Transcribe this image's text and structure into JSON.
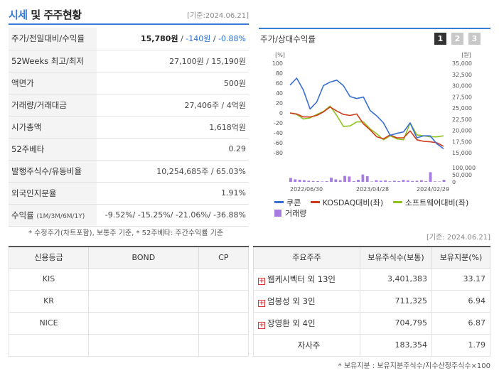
{
  "header": {
    "title_accent": "시세",
    "title_rest": " 및 주주현황",
    "date": "[기준:2024.06.21]"
  },
  "summary": {
    "rows": [
      {
        "label": "주가/전일대비/수익률",
        "price": "15,780원",
        "sep1": " / ",
        "change": "-140원",
        "sep2": " / ",
        "rate": "-0.88%"
      },
      {
        "label": "52Weeks 최고/최저",
        "value": "27,100원 / 15,190원"
      },
      {
        "label": "액면가",
        "value": "500원"
      },
      {
        "label": "거래량/거래대금",
        "value": "27,406주 / 4억원"
      },
      {
        "label": "시가총액",
        "value": "1,618억원"
      },
      {
        "label": "52주베타",
        "value": "0.29"
      },
      {
        "label": "발행주식수/유동비율",
        "value": "10,254,685주 / 65.03%"
      },
      {
        "label": "외국인지분율",
        "value": "1.91%"
      },
      {
        "label": "수익률",
        "label_small": "(1M/3M/6M/1Y)",
        "value": "-9.52%/ -15.25%/ -21.06%/ -36.88%"
      }
    ],
    "note": "* 수정주가(차트포함), 보통주 기준, * 52주베타: 주간수익률 기준"
  },
  "chart_panel": {
    "title": "주가/상대수익률",
    "pages": [
      "1",
      "2",
      "3"
    ],
    "date": "[기준: 2024.06.21]"
  },
  "chart_data": {
    "type": "line",
    "left_axis_unit": "[%]",
    "right_axis_unit": "[원]",
    "left_axis_ticks": [
      "100",
      "80",
      "60",
      "40",
      "20",
      "0",
      "-20",
      "-40",
      "-60",
      "-80"
    ],
    "right_axis_ticks": [
      "35,000",
      "32,500",
      "30,000",
      "27,500",
      "25,000",
      "22,500",
      "20,000",
      "17,500",
      "15,000"
    ],
    "volume_axis_ticks": [
      "100,000",
      "50,000",
      "0"
    ],
    "x_tick_labels": [
      "2022/06/30",
      "2023/04/28",
      "2024/02/29"
    ],
    "ylim_left": [
      -80,
      100
    ],
    "ylim_right": [
      15000,
      35000
    ],
    "series": [
      {
        "name": "쿠콘",
        "color": "#3a6fd0",
        "axis": "left",
        "values": [
          56,
          70,
          46,
          8,
          22,
          55,
          62,
          66,
          55,
          33,
          29,
          32,
          5,
          -6,
          -20,
          -45,
          -41,
          -38,
          -20,
          -50,
          -46,
          -46,
          -62,
          -72
        ]
      },
      {
        "name": "KOSDAQ대비(좌)",
        "color": "#d03a1a",
        "axis": "left",
        "values": [
          0,
          -2,
          -8,
          -8,
          -5,
          2,
          12,
          4,
          -3,
          -5,
          -2,
          -22,
          -34,
          -48,
          -52,
          -44,
          -50,
          -50,
          -36,
          -54,
          -57,
          -58,
          -60,
          -67
        ]
      },
      {
        "name": "소프트웨어대비(좌)",
        "color": "#8dc21f",
        "axis": "left",
        "values": [
          0,
          -3,
          -12,
          -10,
          -3,
          3,
          14,
          -5,
          -27,
          -26,
          -18,
          -18,
          -32,
          -42,
          -54,
          -46,
          -52,
          -54,
          -20,
          -44,
          -46,
          -48,
          -48,
          -46
        ]
      }
    ],
    "volume": {
      "name": "거래량",
      "color": "#a77de0",
      "values": [
        28000,
        18000,
        15000,
        12000,
        8000,
        6000,
        5000,
        3000,
        5000,
        30000,
        18000,
        12000,
        42000,
        38000,
        5000,
        15000,
        52000,
        40000,
        3000,
        12000,
        8000,
        10000,
        4000,
        8000,
        5000,
        14000,
        10000,
        6000,
        8000,
        12000,
        5000,
        68000,
        4000,
        3000,
        15000
      ]
    }
  },
  "legend": [
    {
      "label": "쿠콘",
      "color": "#3a6fd0"
    },
    {
      "label": "KOSDAQ대비(좌)",
      "color": "#d03a1a"
    },
    {
      "label": "소프트웨어대비(좌)",
      "color": "#8dc21f"
    },
    {
      "label": "거래량",
      "color": "#a77de0"
    }
  ],
  "credit": {
    "headers": [
      "신용등급",
      "BOND",
      "CP"
    ],
    "rows": [
      [
        "KIS",
        "",
        ""
      ],
      [
        "KR",
        "",
        ""
      ],
      [
        "NICE",
        "",
        ""
      ],
      [
        "",
        "",
        ""
      ]
    ]
  },
  "holders": {
    "headers": [
      "주요주주",
      "보유주식수(보통)",
      "보유지분(%)"
    ],
    "rows": [
      {
        "name": "웹케시벡터 외 13인",
        "shares": "3,401,383",
        "pct": "33.17",
        "expand": true
      },
      {
        "name": "엄봉성 외 3인",
        "shares": "711,325",
        "pct": "6.94",
        "expand": true
      },
      {
        "name": "장영환 외 4인",
        "shares": "704,795",
        "pct": "6.87",
        "expand": true
      },
      {
        "name": "자사주",
        "shares": "183,354",
        "pct": "1.79",
        "expand": false
      }
    ],
    "note": "* 보유지분 : 보유지분주식수/지수산정주식수×100"
  }
}
